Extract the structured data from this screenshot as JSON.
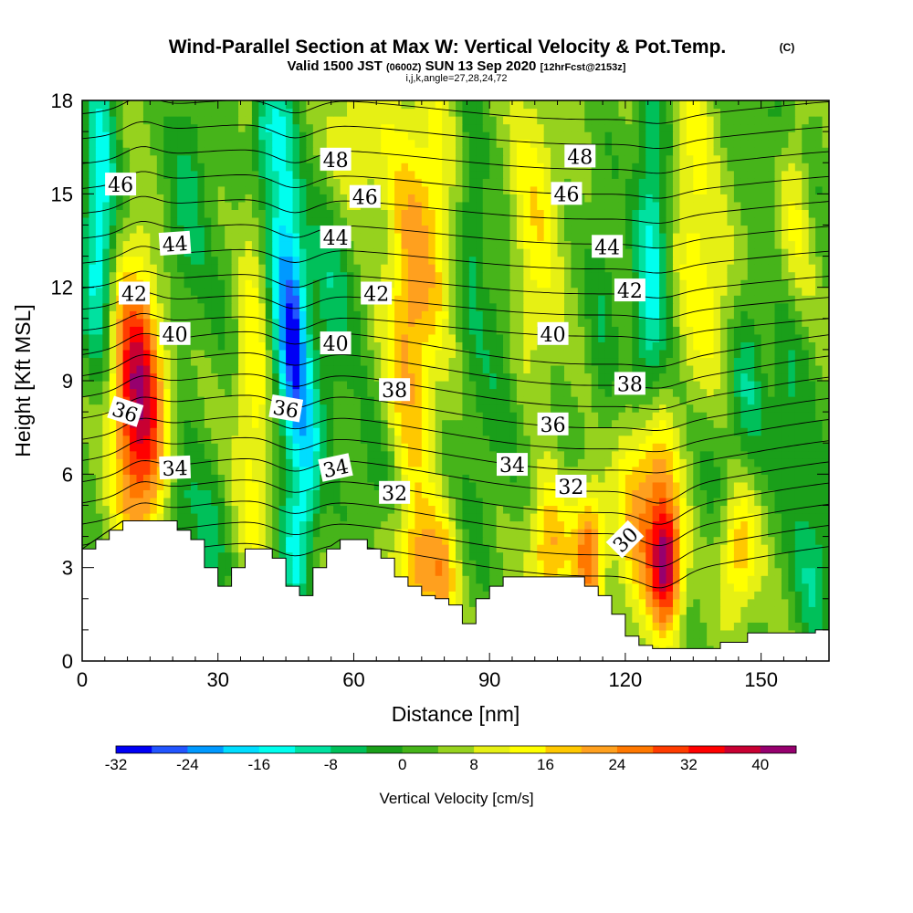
{
  "title": {
    "main": "Wind-Parallel Section at Max W: Vertical Velocity & Pot.Temp.",
    "copyright": "(C)",
    "valid_prefix": "Valid 1500 JST",
    "valid_utc": "(0600Z)",
    "valid_date": "SUN 13 Sep 2020",
    "forecast": "[12hrFcst@2153z]",
    "indices": "i,j,k,angle=27,28,24,72"
  },
  "chart_data": {
    "type": "heatmap",
    "xlabel": "Distance [nm]",
    "ylabel": "Height [Kft MSL]",
    "xlim": [
      0,
      165
    ],
    "ylim": [
      0,
      18
    ],
    "x_ticks": [
      0,
      30,
      60,
      90,
      120,
      150
    ],
    "y_ticks": [
      0,
      3,
      6,
      9,
      12,
      15,
      18
    ],
    "terrain": {
      "x": [
        0,
        3,
        6,
        9,
        12,
        15,
        18,
        21,
        24,
        27,
        30,
        33,
        36,
        39,
        42,
        45,
        48,
        51,
        54,
        57,
        60,
        63,
        66,
        69,
        72,
        75,
        78,
        81,
        84,
        87,
        90,
        93,
        96,
        99,
        102,
        105,
        108,
        111,
        114,
        117,
        120,
        123,
        126,
        129,
        132,
        135,
        138,
        141,
        144,
        147,
        150,
        153,
        156,
        159,
        162,
        165
      ],
      "height": [
        3.6,
        3.9,
        4.2,
        4.5,
        4.5,
        4.5,
        4.5,
        4.2,
        3.9,
        3.0,
        2.4,
        3.0,
        3.6,
        3.6,
        3.3,
        2.4,
        2.1,
        3.0,
        3.6,
        3.9,
        3.9,
        3.6,
        3.3,
        2.7,
        2.4,
        2.1,
        2.0,
        1.8,
        1.2,
        2.0,
        2.4,
        2.7,
        2.7,
        2.7,
        2.7,
        2.7,
        2.7,
        2.4,
        2.1,
        1.5,
        0.8,
        0.5,
        0.4,
        0.4,
        0.4,
        0.4,
        0.4,
        0.6,
        0.6,
        0.9,
        0.9,
        0.9,
        0.9,
        0.9,
        1.0,
        1.3
      ]
    },
    "vertical_velocity_features": [
      {
        "x": 13,
        "z": 7.5,
        "w": 28,
        "sx": 4,
        "sz": 3.0
      },
      {
        "x": 11,
        "z": 10.0,
        "w": 14,
        "sx": 4,
        "sz": 2.5
      },
      {
        "x": 4,
        "z": 15.0,
        "w": -18,
        "sx": 2.5,
        "sz": 3.5
      },
      {
        "x": 3,
        "z": 11.5,
        "w": -6,
        "sx": 2.5,
        "sz": 2.0
      },
      {
        "x": 22,
        "z": 5.0,
        "w": -10,
        "sx": 2.5,
        "sz": 1.5
      },
      {
        "x": 28,
        "z": 3.5,
        "w": -10,
        "sx": 2.5,
        "sz": 1.5
      },
      {
        "x": 24,
        "z": 15.0,
        "w": -8,
        "sx": 3.0,
        "sz": 3.0
      },
      {
        "x": 38,
        "z": 9.0,
        "w": 12,
        "sx": 3.0,
        "sz": 5.0
      },
      {
        "x": 44,
        "z": 13.5,
        "w": -20,
        "sx": 2.5,
        "sz": 4.0
      },
      {
        "x": 47,
        "z": 10.0,
        "w": -24,
        "sx": 2.0,
        "sz": 2.5
      },
      {
        "x": 50,
        "z": 6.5,
        "w": -16,
        "sx": 2.0,
        "sz": 2.0
      },
      {
        "x": 47,
        "z": 3.5,
        "w": -14,
        "sx": 2.0,
        "sz": 1.5
      },
      {
        "x": 55,
        "z": 12.0,
        "w": -10,
        "sx": 4.0,
        "sz": 3.0
      },
      {
        "x": 40,
        "z": 17.0,
        "w": -14,
        "sx": 2.0,
        "sz": 1.5
      },
      {
        "x": 60,
        "z": 16.5,
        "w": 10,
        "sx": 5.0,
        "sz": 2.0
      },
      {
        "x": 72,
        "z": 11.0,
        "w": 18,
        "sx": 3.5,
        "sz": 4.5
      },
      {
        "x": 78,
        "z": 14.0,
        "w": 10,
        "sx": 3.0,
        "sz": 3.5
      },
      {
        "x": 75,
        "z": 3.0,
        "w": 18,
        "sx": 3.0,
        "sz": 1.5
      },
      {
        "x": 80,
        "z": 2.5,
        "w": 14,
        "sx": 2.0,
        "sz": 1.5
      },
      {
        "x": 86,
        "z": 14.0,
        "w": -8,
        "sx": 2.0,
        "sz": 3.0
      },
      {
        "x": 92,
        "z": 11.0,
        "w": -6,
        "sx": 3.0,
        "sz": 2.0
      },
      {
        "x": 88,
        "z": 6.0,
        "w": -4,
        "sx": 3.0,
        "sz": 2.5
      },
      {
        "x": 100,
        "z": 15.0,
        "w": 10,
        "sx": 4.0,
        "sz": 3.0
      },
      {
        "x": 95,
        "z": 7.5,
        "w": -3,
        "sx": 3.0,
        "sz": 1.5
      },
      {
        "x": 103,
        "z": 3.5,
        "w": 18,
        "sx": 3.0,
        "sz": 1.5
      },
      {
        "x": 112,
        "z": 3.5,
        "w": 24,
        "sx": 2.5,
        "sz": 1.5
      },
      {
        "x": 115,
        "z": 11.5,
        "w": -6,
        "sx": 2.5,
        "sz": 3.0
      },
      {
        "x": 126,
        "z": 13.0,
        "w": -16,
        "sx": 2.5,
        "sz": 4.0
      },
      {
        "x": 123,
        "z": 9.5,
        "w": -6,
        "sx": 2.0,
        "sz": 2.0
      },
      {
        "x": 122,
        "z": 5.0,
        "w": 14,
        "sx": 3.0,
        "sz": 2.5
      },
      {
        "x": 129,
        "z": 3.0,
        "w": 34,
        "sx": 2.5,
        "sz": 1.4
      },
      {
        "x": 127,
        "z": 5.5,
        "w": 18,
        "sx": 3.0,
        "sz": 2.0
      },
      {
        "x": 135,
        "z": 15.0,
        "w": 10,
        "sx": 3.0,
        "sz": 4.0
      },
      {
        "x": 140,
        "z": 11.5,
        "w": 8,
        "sx": 3.0,
        "sz": 2.0
      },
      {
        "x": 145,
        "z": 3.5,
        "w": 16,
        "sx": 3.0,
        "sz": 1.5
      },
      {
        "x": 140,
        "z": 6.0,
        "w": -4,
        "sx": 3.0,
        "sz": 2.0
      },
      {
        "x": 147,
        "z": 9.0,
        "w": -10,
        "sx": 2.5,
        "sz": 2.0
      },
      {
        "x": 156,
        "z": 9.0,
        "w": -10,
        "sx": 3.0,
        "sz": 2.0
      },
      {
        "x": 158,
        "z": 14.0,
        "w": 8,
        "sx": 3.0,
        "sz": 3.0
      },
      {
        "x": 162,
        "z": 16.0,
        "w": -4,
        "sx": 2.0,
        "sz": 2.0
      },
      {
        "x": 152,
        "z": 17.0,
        "w": -6,
        "sx": 3.0,
        "sz": 1.2
      },
      {
        "x": 162,
        "z": 2.5,
        "w": -10,
        "sx": 3.0,
        "sz": 1.5
      },
      {
        "x": 160,
        "z": 5.0,
        "w": -6,
        "sx": 3.0,
        "sz": 1.5
      },
      {
        "x": 33,
        "z": 12.0,
        "w": -4,
        "sx": 3.0,
        "sz": 2.0
      },
      {
        "x": 18,
        "z": 12.5,
        "w": -4,
        "sx": 3.0,
        "sz": 2.0
      },
      {
        "x": 65,
        "z": 6.0,
        "w": -6,
        "sx": 4.0,
        "sz": 1.5
      },
      {
        "x": 100,
        "z": 11.0,
        "w": 4,
        "sx": 4.0,
        "sz": 2.0
      }
    ],
    "potential_temperature": {
      "contour_interval": 1,
      "levels_range": [
        29,
        49
      ],
      "labels": [
        {
          "value": "46",
          "x": 8.5,
          "z": 15.3,
          "rotate": 0
        },
        {
          "value": "44",
          "x": 20.5,
          "z": 13.4,
          "rotate": -4
        },
        {
          "value": "42",
          "x": 11.5,
          "z": 11.8,
          "rotate": 0
        },
        {
          "value": "40",
          "x": 20.5,
          "z": 10.5,
          "rotate": 0
        },
        {
          "value": "36",
          "x": 9.5,
          "z": 8.0,
          "rotate": 18
        },
        {
          "value": "34",
          "x": 20.5,
          "z": 6.2,
          "rotate": -2
        },
        {
          "value": "48",
          "x": 56,
          "z": 16.1,
          "rotate": 0
        },
        {
          "value": "46",
          "x": 62.5,
          "z": 14.9,
          "rotate": 0
        },
        {
          "value": "44",
          "x": 56,
          "z": 13.6,
          "rotate": 0
        },
        {
          "value": "42",
          "x": 65,
          "z": 11.8,
          "rotate": 0
        },
        {
          "value": "40",
          "x": 56,
          "z": 10.2,
          "rotate": 0
        },
        {
          "value": "36",
          "x": 45,
          "z": 8.1,
          "rotate": 10
        },
        {
          "value": "38",
          "x": 69,
          "z": 8.7,
          "rotate": 0
        },
        {
          "value": "34",
          "x": 56,
          "z": 6.2,
          "rotate": -12
        },
        {
          "value": "32",
          "x": 69,
          "z": 5.4,
          "rotate": 0
        },
        {
          "value": "48",
          "x": 110,
          "z": 16.2,
          "rotate": 0
        },
        {
          "value": "46",
          "x": 107,
          "z": 15.0,
          "rotate": 0
        },
        {
          "value": "44",
          "x": 116,
          "z": 13.3,
          "rotate": 0
        },
        {
          "value": "42",
          "x": 121,
          "z": 11.9,
          "rotate": 0
        },
        {
          "value": "40",
          "x": 104,
          "z": 10.5,
          "rotate": 0
        },
        {
          "value": "38",
          "x": 121,
          "z": 8.9,
          "rotate": 0
        },
        {
          "value": "36",
          "x": 104,
          "z": 7.6,
          "rotate": 0
        },
        {
          "value": "34",
          "x": 95,
          "z": 6.3,
          "rotate": 0
        },
        {
          "value": "32",
          "x": 108,
          "z": 5.6,
          "rotate": 0
        },
        {
          "value": "30",
          "x": 120,
          "z": 3.9,
          "rotate": -45
        }
      ]
    },
    "colorbar": {
      "label": "Vertical Velocity [cm/s]",
      "bounds": [
        -32,
        -28,
        -24,
        -20,
        -16,
        -12,
        -8,
        -4,
        0,
        4,
        8,
        12,
        16,
        20,
        24,
        28,
        32,
        36,
        40,
        44
      ],
      "colors": [
        "#0000f5",
        "#2255ff",
        "#0099ff",
        "#00ddff",
        "#00ffee",
        "#00e1a0",
        "#00c05a",
        "#1a9f1a",
        "#46b41a",
        "#96d21e",
        "#e6f014",
        "#ffff00",
        "#ffc800",
        "#ffa01e",
        "#ff7800",
        "#ff3c00",
        "#ff0000",
        "#c80032",
        "#96006e"
      ],
      "tick_labels": [
        "-32",
        "-24",
        "-16",
        "-8",
        "0",
        "8",
        "16",
        "24",
        "32",
        "40"
      ]
    }
  }
}
